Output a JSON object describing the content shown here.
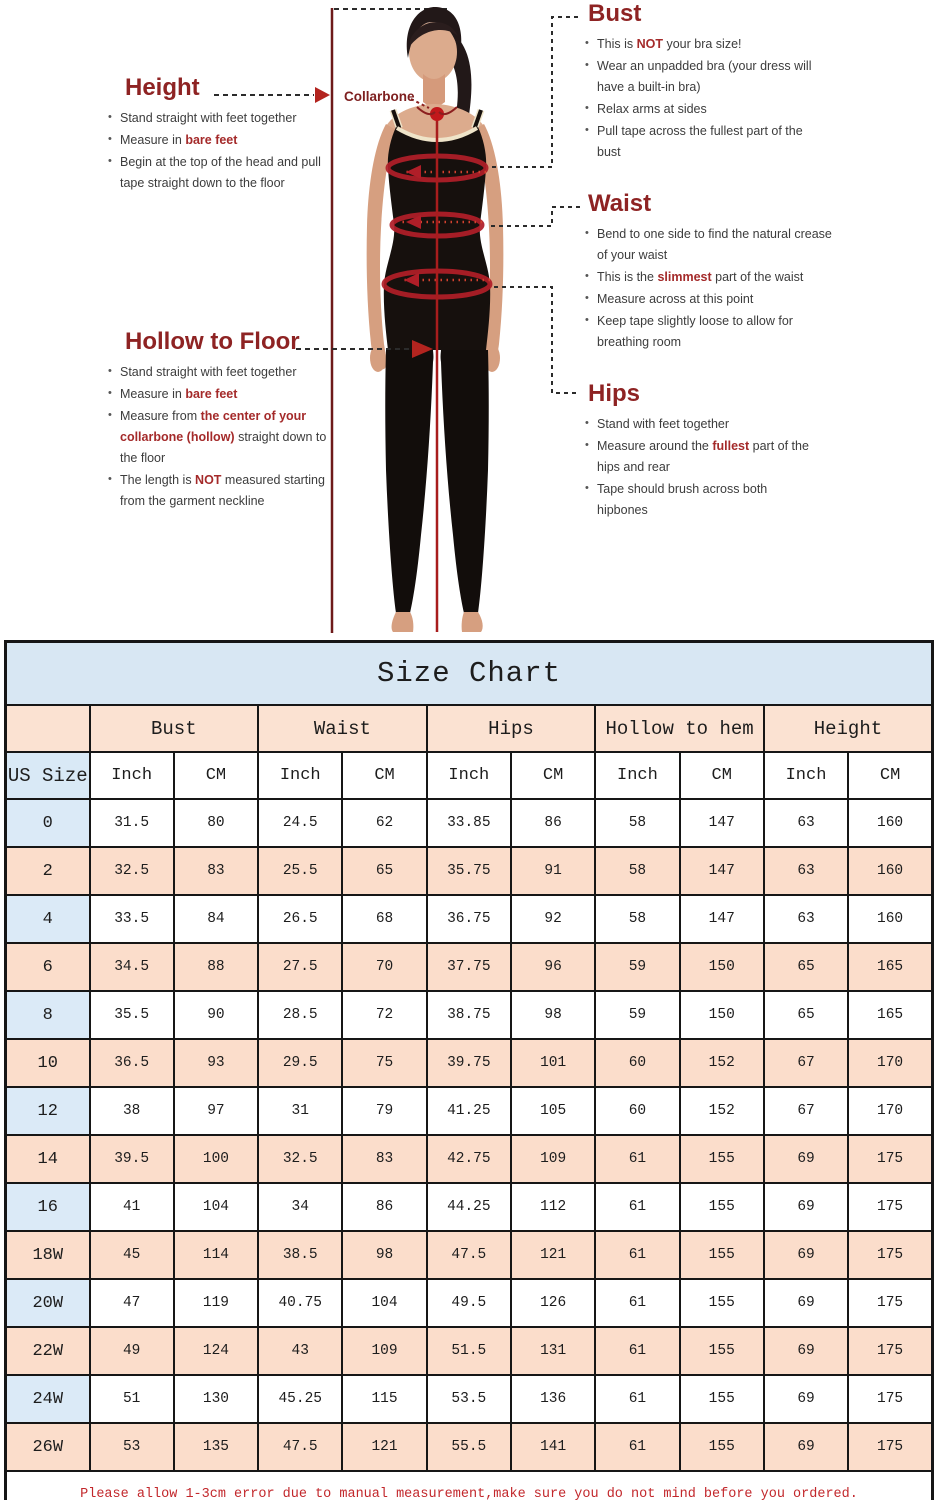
{
  "diagram": {
    "collarbone_label": "Collarbone",
    "sections": [
      {
        "id": "height",
        "title": "Height",
        "bullets": [
          [
            {
              "t": "Stand straight with feet together"
            }
          ],
          [
            {
              "t": "Measure in "
            },
            {
              "t": "bare feet",
              "red": true
            }
          ],
          [
            {
              "t": "Begin at the top of the head and pull tape straight down to the floor"
            }
          ]
        ]
      },
      {
        "id": "bust",
        "title": "Bust",
        "bullets": [
          [
            {
              "t": "This is "
            },
            {
              "t": "NOT",
              "red": true
            },
            {
              "t": " your bra size!"
            }
          ],
          [
            {
              "t": "Wear an unpadded bra (your dress will have a built-in bra)"
            }
          ],
          [
            {
              "t": "Relax arms at sides"
            }
          ],
          [
            {
              "t": "Pull tape across the fullest part of the bust"
            }
          ]
        ]
      },
      {
        "id": "waist",
        "title": "Waist",
        "bullets": [
          [
            {
              "t": "Bend to one side to find the natural crease of your waist"
            }
          ],
          [
            {
              "t": "This is the "
            },
            {
              "t": "slimmest",
              "red": true
            },
            {
              "t": " part of the waist"
            }
          ],
          [
            {
              "t": "Measure across at this point"
            }
          ],
          [
            {
              "t": "Keep tape slightly loose to allow for breathing room"
            }
          ]
        ]
      },
      {
        "id": "hips",
        "title": "Hips",
        "bullets": [
          [
            {
              "t": "Stand with feet together"
            }
          ],
          [
            {
              "t": "Measure around the "
            },
            {
              "t": "fullest",
              "red": true
            },
            {
              "t": " part of the hips and rear"
            }
          ],
          [
            {
              "t": "Tape should brush across both hipbones"
            }
          ]
        ]
      },
      {
        "id": "hollow_to_floor",
        "title": "Hollow to Floor",
        "bullets": [
          [
            {
              "t": "Stand straight with feet together"
            }
          ],
          [
            {
              "t": "Measure in "
            },
            {
              "t": "bare feet",
              "red": true
            }
          ],
          [
            {
              "t": "Measure from "
            },
            {
              "t": "the center of your collarbone (hollow)",
              "red": true
            },
            {
              "t": " straight down to the floor"
            }
          ],
          [
            {
              "t": "The length is "
            },
            {
              "t": "NOT",
              "red": true
            },
            {
              "t": " measured starting from the garment neckline"
            }
          ]
        ]
      }
    ]
  },
  "size_chart": {
    "title": "Size Chart",
    "row_header": "US Size",
    "groups": [
      "Bust",
      "Waist",
      "Hips",
      "Hollow to hem",
      "Height"
    ],
    "unit_labels": [
      "Inch",
      "CM"
    ],
    "footnote": "Please allow 1-3cm error due to manual measurement,make sure you do not mind before you ordered."
  },
  "chart_data": {
    "type": "table",
    "title": "Size Chart",
    "columns": [
      "US Size",
      "Bust Inch",
      "Bust CM",
      "Waist Inch",
      "Waist CM",
      "Hips Inch",
      "Hips CM",
      "Hollow to hem Inch",
      "Hollow to hem CM",
      "Height Inch",
      "Height CM"
    ],
    "rows": [
      [
        "0",
        "31.5",
        "80",
        "24.5",
        "62",
        "33.85",
        "86",
        "58",
        "147",
        "63",
        "160"
      ],
      [
        "2",
        "32.5",
        "83",
        "25.5",
        "65",
        "35.75",
        "91",
        "58",
        "147",
        "63",
        "160"
      ],
      [
        "4",
        "33.5",
        "84",
        "26.5",
        "68",
        "36.75",
        "92",
        "58",
        "147",
        "63",
        "160"
      ],
      [
        "6",
        "34.5",
        "88",
        "27.5",
        "70",
        "37.75",
        "96",
        "59",
        "150",
        "65",
        "165"
      ],
      [
        "8",
        "35.5",
        "90",
        "28.5",
        "72",
        "38.75",
        "98",
        "59",
        "150",
        "65",
        "165"
      ],
      [
        "10",
        "36.5",
        "93",
        "29.5",
        "75",
        "39.75",
        "101",
        "60",
        "152",
        "67",
        "170"
      ],
      [
        "12",
        "38",
        "97",
        "31",
        "79",
        "41.25",
        "105",
        "60",
        "152",
        "67",
        "170"
      ],
      [
        "14",
        "39.5",
        "100",
        "32.5",
        "83",
        "42.75",
        "109",
        "61",
        "155",
        "69",
        "175"
      ],
      [
        "16",
        "41",
        "104",
        "34",
        "86",
        "44.25",
        "112",
        "61",
        "155",
        "69",
        "175"
      ],
      [
        "18W",
        "45",
        "114",
        "38.5",
        "98",
        "47.5",
        "121",
        "61",
        "155",
        "69",
        "175"
      ],
      [
        "20W",
        "47",
        "119",
        "40.75",
        "104",
        "49.5",
        "126",
        "61",
        "155",
        "69",
        "175"
      ],
      [
        "22W",
        "49",
        "124",
        "43",
        "109",
        "51.5",
        "131",
        "61",
        "155",
        "69",
        "175"
      ],
      [
        "24W",
        "51",
        "130",
        "45.25",
        "115",
        "53.5",
        "136",
        "61",
        "155",
        "69",
        "175"
      ],
      [
        "26W",
        "53",
        "135",
        "47.5",
        "121",
        "55.5",
        "141",
        "61",
        "155",
        "69",
        "175"
      ]
    ]
  },
  "colors": {
    "heading_red": "#8e2323",
    "highlight_red": "#a42a2a",
    "measure_ring_red": "#b01e28",
    "table_title_blue": "#d8e7f3",
    "group_header_peach": "#fbe2d2",
    "size_cell_blue": "#dbeaf7",
    "row_peach": "#fbddcb",
    "footnote_red": "#c2272b"
  }
}
